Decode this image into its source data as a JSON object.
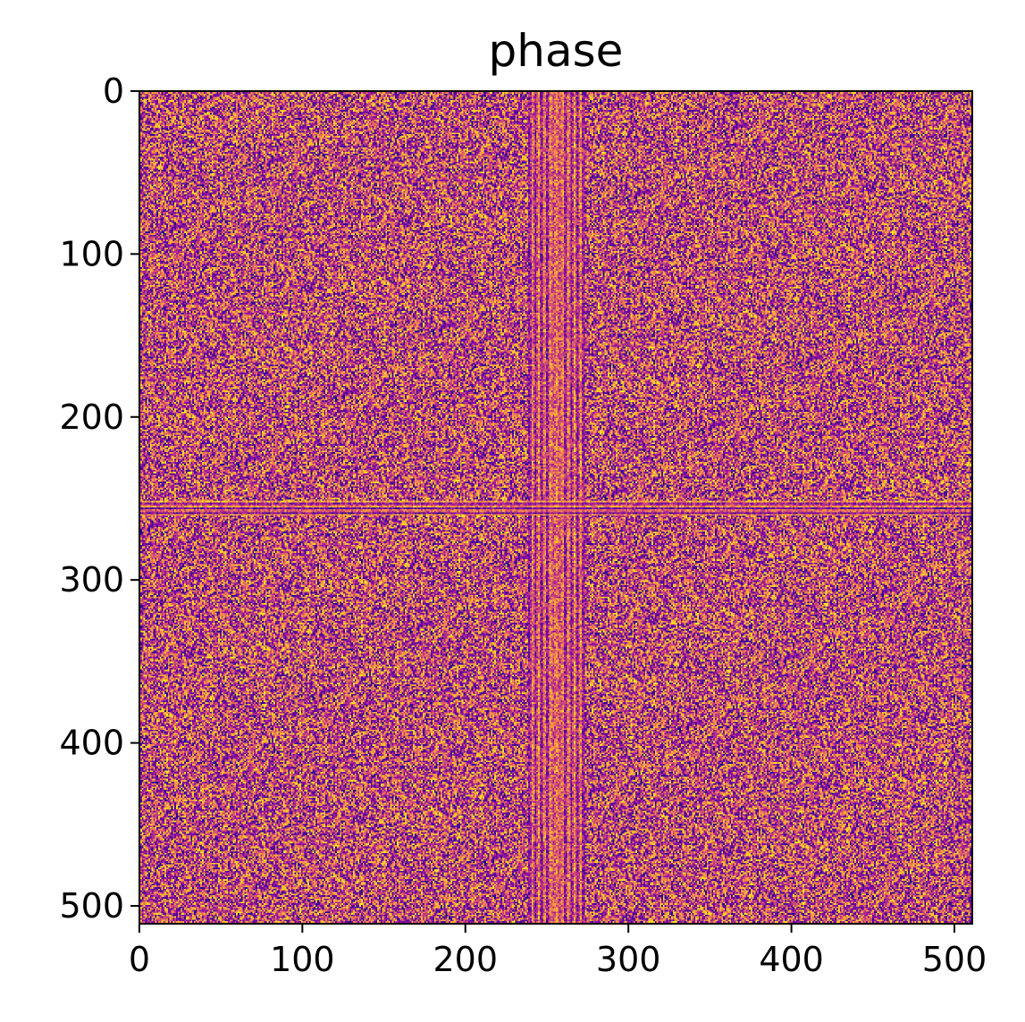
{
  "chart_data": {
    "type": "heatmap",
    "title": "phase",
    "colormap": "plasma",
    "image_size": [
      512,
      512
    ],
    "xlim": [
      0,
      511
    ],
    "ylim": [
      511,
      0
    ],
    "x_ticks": [
      0,
      100,
      200,
      300,
      400,
      500
    ],
    "y_ticks": [
      0,
      100,
      200,
      300,
      400,
      500
    ],
    "x_tick_labels": [
      "0",
      "100",
      "200",
      "300",
      "400",
      "500"
    ],
    "y_tick_labels": [
      "0",
      "100",
      "200",
      "300",
      "400",
      "500"
    ],
    "features": {
      "vertical_band_center": 256,
      "horizontal_band_center": 256,
      "background": "random phase noise"
    },
    "colors": {
      "low": "#0d0887",
      "mid": "#cc4778",
      "high": "#f0f921",
      "axis": "#000000"
    }
  }
}
